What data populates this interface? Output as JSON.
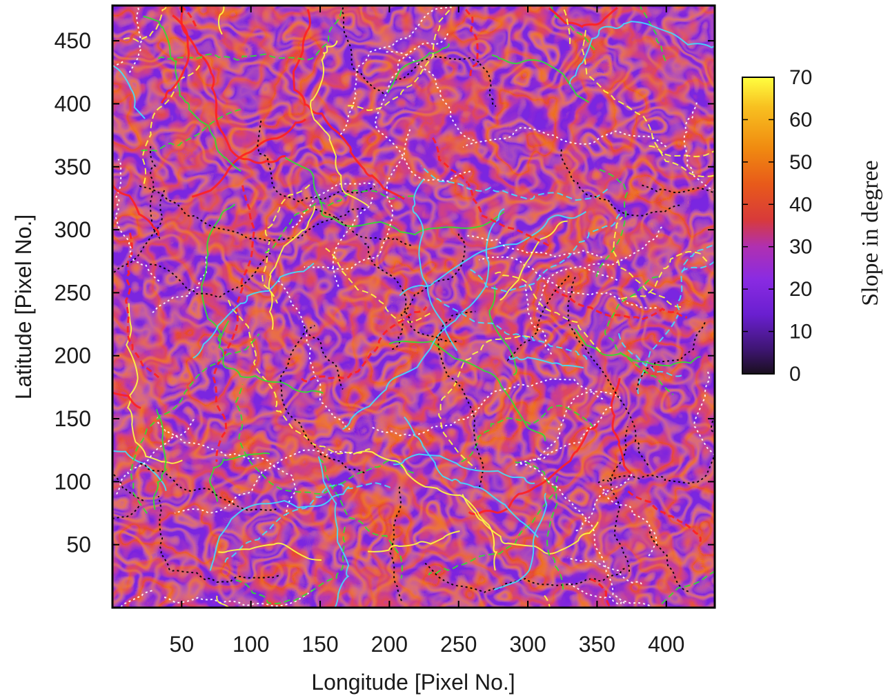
{
  "chart_data": {
    "type": "heatmap",
    "title": "",
    "xlabel": "Longitude [Pixel No.]",
    "ylabel": "Latitude [Pixel No.]",
    "xlim": [
      0,
      435
    ],
    "ylim": [
      0,
      478
    ],
    "xticks": [
      50,
      100,
      150,
      200,
      250,
      300,
      350,
      400
    ],
    "yticks": [
      50,
      100,
      150,
      200,
      250,
      300,
      350,
      400,
      450
    ],
    "grid": false,
    "colorbar": {
      "label": "Slope in degree",
      "min": 0,
      "max": 70,
      "ticks": [
        0,
        10,
        20,
        30,
        40,
        50,
        60,
        70
      ],
      "position": "right",
      "colormap": [
        "#1a0f1e",
        "#3d1570",
        "#6a1fd0",
        "#8a2be2",
        "#b030b0",
        "#d83a3a",
        "#e85a1a",
        "#f08a10",
        "#f8c020",
        "#ffff40"
      ]
    },
    "contour_colors": [
      "#000000",
      "#ff2020",
      "#ffff40",
      "#30e030",
      "#40e0ff",
      "#ffffff"
    ]
  }
}
